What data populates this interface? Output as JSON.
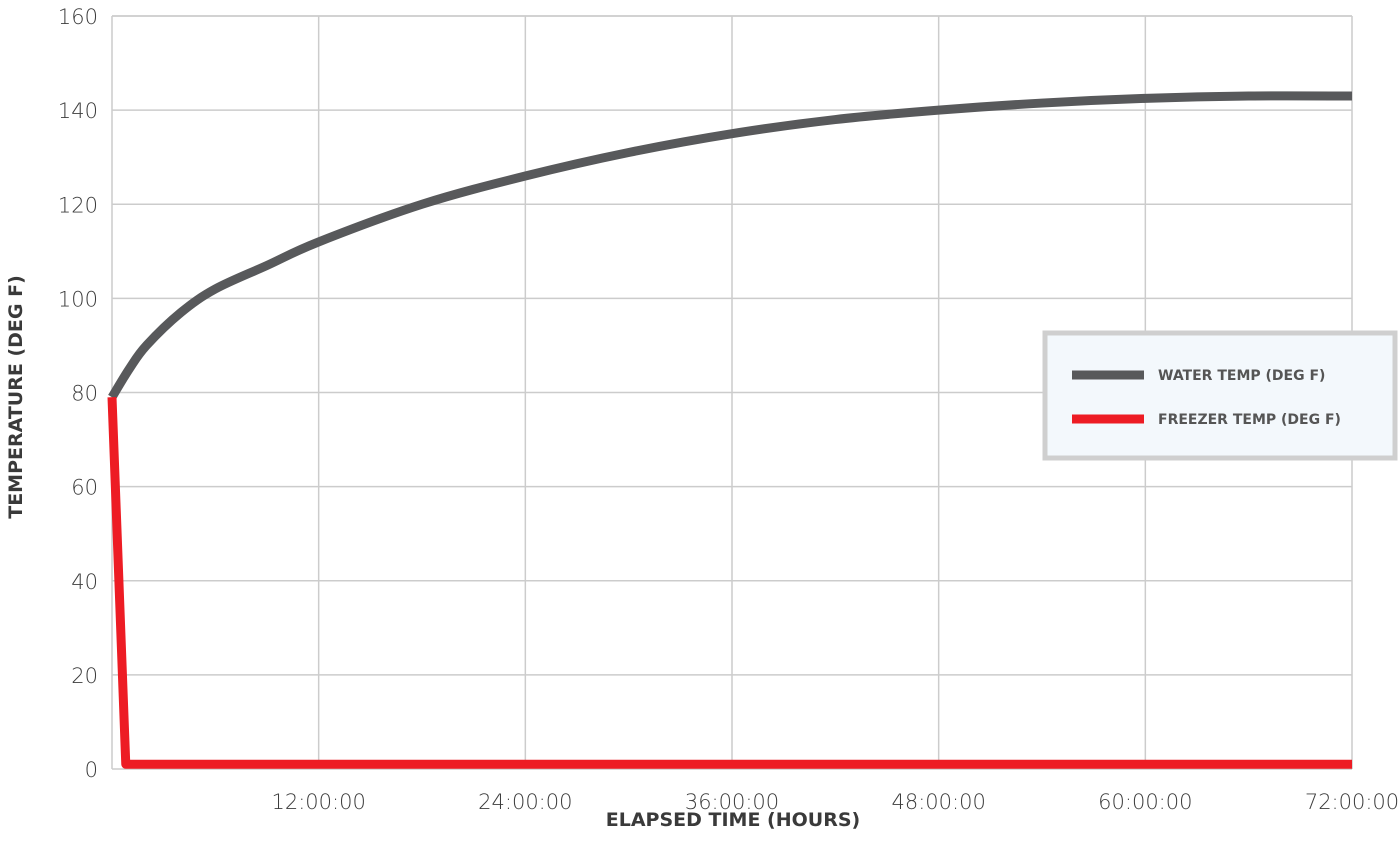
{
  "chart_data": {
    "type": "line",
    "title": "",
    "xlabel": "ELAPSED TIME (HOURS)",
    "ylabel": "TEMPERATURE (DEG F)",
    "xlim": [
      0,
      72
    ],
    "ylim": [
      0,
      160
    ],
    "grid": true,
    "legend_position": "right",
    "x_ticks": [
      {
        "value": 12,
        "label": "12:00:00"
      },
      {
        "value": 24,
        "label": "24:00:00"
      },
      {
        "value": 36,
        "label": "36:00:00"
      },
      {
        "value": 48,
        "label": "48:00:00"
      },
      {
        "value": 60,
        "label": "60:00:00"
      },
      {
        "value": 72,
        "label": "72:00:00"
      }
    ],
    "y_ticks": [
      {
        "value": 0,
        "label": "0"
      },
      {
        "value": 20,
        "label": "20"
      },
      {
        "value": 40,
        "label": "40"
      },
      {
        "value": 60,
        "label": "60"
      },
      {
        "value": 80,
        "label": "80"
      },
      {
        "value": 100,
        "label": "100"
      },
      {
        "value": 120,
        "label": "120"
      },
      {
        "value": 140,
        "label": "140"
      },
      {
        "value": 160,
        "label": "160"
      }
    ],
    "series": [
      {
        "name": "WATER TEMP (DEG F)",
        "color": "#58595b",
        "x": [
          0,
          1,
          2,
          4,
          6,
          9,
          12,
          18,
          24,
          30,
          36,
          42,
          48,
          54,
          60,
          66,
          72
        ],
        "y": [
          79,
          85,
          90,
          97,
          102,
          107,
          112,
          120,
          126,
          131,
          135,
          138,
          140,
          141.5,
          142.5,
          143,
          143
        ]
      },
      {
        "name": "FREEZER TEMP (DEG F)",
        "color": "#ed1c24",
        "x": [
          0,
          0.8,
          12,
          24,
          36,
          48,
          60,
          72
        ],
        "y": [
          79,
          1,
          1,
          1,
          1,
          1,
          1,
          1
        ]
      }
    ]
  }
}
